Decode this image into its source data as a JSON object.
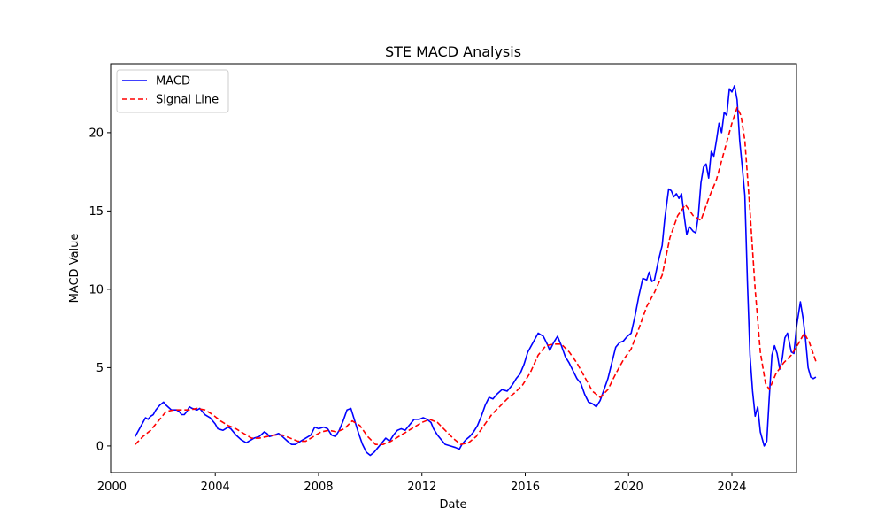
{
  "chart_data": {
    "type": "line",
    "title": "STE MACD Analysis",
    "xlabel": "Date",
    "ylabel": "MACD Value",
    "xlim": [
      1999.95,
      2026.5
    ],
    "ylim": [
      -1.7,
      24.4
    ],
    "x_ticks": [
      2000,
      2004,
      2008,
      2012,
      2016,
      2020,
      2024
    ],
    "y_ticks": [
      0,
      5,
      10,
      15,
      20
    ],
    "grid": false,
    "legend_position": "top-left",
    "series": [
      {
        "name": "MACD",
        "color": "#0000ff",
        "style": "solid",
        "points": [
          [
            2000.9,
            0.6
          ],
          [
            2001.0,
            0.9
          ],
          [
            2001.2,
            1.5
          ],
          [
            2001.3,
            1.8
          ],
          [
            2001.4,
            1.7
          ],
          [
            2001.5,
            1.9
          ],
          [
            2001.6,
            2.0
          ],
          [
            2001.7,
            2.3
          ],
          [
            2001.85,
            2.6
          ],
          [
            2002.0,
            2.8
          ],
          [
            2002.1,
            2.6
          ],
          [
            2002.3,
            2.3
          ],
          [
            2002.5,
            2.3
          ],
          [
            2002.6,
            2.2
          ],
          [
            2002.7,
            2.0
          ],
          [
            2002.8,
            2.0
          ],
          [
            2002.9,
            2.2
          ],
          [
            2003.0,
            2.5
          ],
          [
            2003.1,
            2.4
          ],
          [
            2003.3,
            2.3
          ],
          [
            2003.4,
            2.4
          ],
          [
            2003.5,
            2.2
          ],
          [
            2003.6,
            2.0
          ],
          [
            2003.8,
            1.8
          ],
          [
            2004.0,
            1.4
          ],
          [
            2004.1,
            1.1
          ],
          [
            2004.3,
            1.0
          ],
          [
            2004.5,
            1.2
          ],
          [
            2004.6,
            1.1
          ],
          [
            2004.8,
            0.7
          ],
          [
            2005.0,
            0.4
          ],
          [
            2005.2,
            0.2
          ],
          [
            2005.3,
            0.3
          ],
          [
            2005.5,
            0.5
          ],
          [
            2005.7,
            0.6
          ],
          [
            2005.9,
            0.9
          ],
          [
            2006.0,
            0.8
          ],
          [
            2006.1,
            0.6
          ],
          [
            2006.3,
            0.7
          ],
          [
            2006.45,
            0.8
          ],
          [
            2006.6,
            0.6
          ],
          [
            2006.8,
            0.3
          ],
          [
            2006.95,
            0.1
          ],
          [
            2007.1,
            0.1
          ],
          [
            2007.3,
            0.3
          ],
          [
            2007.5,
            0.5
          ],
          [
            2007.7,
            0.7
          ],
          [
            2007.85,
            1.2
          ],
          [
            2008.0,
            1.1
          ],
          [
            2008.2,
            1.2
          ],
          [
            2008.35,
            1.1
          ],
          [
            2008.5,
            0.7
          ],
          [
            2008.65,
            0.6
          ],
          [
            2008.8,
            1.0
          ],
          [
            2008.95,
            1.6
          ],
          [
            2009.1,
            2.3
          ],
          [
            2009.25,
            2.4
          ],
          [
            2009.4,
            1.6
          ],
          [
            2009.55,
            0.8
          ],
          [
            2009.7,
            0.1
          ],
          [
            2009.85,
            -0.4
          ],
          [
            2010.0,
            -0.6
          ],
          [
            2010.15,
            -0.4
          ],
          [
            2010.3,
            -0.1
          ],
          [
            2010.45,
            0.2
          ],
          [
            2010.6,
            0.5
          ],
          [
            2010.75,
            0.3
          ],
          [
            2010.9,
            0.7
          ],
          [
            2011.05,
            1.0
          ],
          [
            2011.2,
            1.1
          ],
          [
            2011.35,
            1.0
          ],
          [
            2011.5,
            1.3
          ],
          [
            2011.7,
            1.7
          ],
          [
            2011.9,
            1.7
          ],
          [
            2012.05,
            1.8
          ],
          [
            2012.2,
            1.7
          ],
          [
            2012.35,
            1.5
          ],
          [
            2012.45,
            1.1
          ],
          [
            2012.6,
            0.7
          ],
          [
            2012.75,
            0.4
          ],
          [
            2012.9,
            0.1
          ],
          [
            2013.1,
            0.0
          ],
          [
            2013.3,
            -0.1
          ],
          [
            2013.45,
            -0.2
          ],
          [
            2013.55,
            0.1
          ],
          [
            2013.7,
            0.4
          ],
          [
            2013.85,
            0.6
          ],
          [
            2014.0,
            0.9
          ],
          [
            2014.15,
            1.3
          ],
          [
            2014.3,
            1.9
          ],
          [
            2014.45,
            2.6
          ],
          [
            2014.6,
            3.1
          ],
          [
            2014.75,
            3.0
          ],
          [
            2014.9,
            3.3
          ],
          [
            2015.1,
            3.6
          ],
          [
            2015.3,
            3.5
          ],
          [
            2015.5,
            3.9
          ],
          [
            2015.65,
            4.3
          ],
          [
            2015.8,
            4.6
          ],
          [
            2015.95,
            5.2
          ],
          [
            2016.1,
            6.0
          ],
          [
            2016.3,
            6.6
          ],
          [
            2016.5,
            7.2
          ],
          [
            2016.7,
            7.0
          ],
          [
            2016.85,
            6.5
          ],
          [
            2016.95,
            6.1
          ],
          [
            2017.1,
            6.6
          ],
          [
            2017.25,
            7.0
          ],
          [
            2017.4,
            6.4
          ],
          [
            2017.55,
            5.7
          ],
          [
            2017.7,
            5.3
          ],
          [
            2017.85,
            4.8
          ],
          [
            2018.0,
            4.3
          ],
          [
            2018.15,
            4.0
          ],
          [
            2018.3,
            3.3
          ],
          [
            2018.45,
            2.8
          ],
          [
            2018.6,
            2.7
          ],
          [
            2018.75,
            2.5
          ],
          [
            2018.9,
            2.9
          ],
          [
            2019.05,
            3.6
          ],
          [
            2019.2,
            4.3
          ],
          [
            2019.35,
            5.3
          ],
          [
            2019.5,
            6.3
          ],
          [
            2019.65,
            6.6
          ],
          [
            2019.8,
            6.7
          ],
          [
            2019.95,
            7.0
          ],
          [
            2020.1,
            7.2
          ],
          [
            2020.25,
            8.3
          ],
          [
            2020.4,
            9.6
          ],
          [
            2020.55,
            10.7
          ],
          [
            2020.7,
            10.6
          ],
          [
            2020.8,
            11.1
          ],
          [
            2020.9,
            10.5
          ],
          [
            2021.0,
            10.6
          ],
          [
            2021.15,
            11.8
          ],
          [
            2021.3,
            12.8
          ],
          [
            2021.4,
            14.5
          ],
          [
            2021.55,
            16.4
          ],
          [
            2021.65,
            16.3
          ],
          [
            2021.75,
            15.9
          ],
          [
            2021.85,
            16.1
          ],
          [
            2021.95,
            15.8
          ],
          [
            2022.05,
            16.1
          ],
          [
            2022.15,
            14.7
          ],
          [
            2022.25,
            13.5
          ],
          [
            2022.35,
            14.0
          ],
          [
            2022.5,
            13.7
          ],
          [
            2022.6,
            13.6
          ],
          [
            2022.7,
            14.7
          ],
          [
            2022.8,
            16.8
          ],
          [
            2022.9,
            17.8
          ],
          [
            2023.0,
            18.0
          ],
          [
            2023.1,
            17.1
          ],
          [
            2023.2,
            18.8
          ],
          [
            2023.3,
            18.5
          ],
          [
            2023.4,
            19.5
          ],
          [
            2023.5,
            20.6
          ],
          [
            2023.6,
            20.0
          ],
          [
            2023.7,
            21.3
          ],
          [
            2023.8,
            21.1
          ],
          [
            2023.9,
            22.8
          ],
          [
            2024.0,
            22.6
          ],
          [
            2024.1,
            23.0
          ],
          [
            2024.2,
            22.1
          ],
          [
            2024.3,
            19.5
          ],
          [
            2024.4,
            17.8
          ],
          [
            2024.5,
            16.0
          ],
          [
            2024.6,
            10.5
          ],
          [
            2024.7,
            5.8
          ],
          [
            2024.8,
            3.5
          ],
          [
            2024.9,
            1.9
          ],
          [
            2025.0,
            2.5
          ],
          [
            2025.1,
            0.9
          ],
          [
            2025.25,
            0.0
          ],
          [
            2025.35,
            0.3
          ],
          [
            2025.45,
            3.2
          ],
          [
            2025.55,
            5.8
          ],
          [
            2025.65,
            6.4
          ],
          [
            2025.75,
            5.9
          ],
          [
            2025.85,
            4.9
          ],
          [
            2025.95,
            5.6
          ],
          [
            2026.05,
            6.9
          ],
          [
            2026.15,
            7.2
          ],
          [
            2026.3,
            6.0
          ],
          [
            2026.4,
            5.9
          ],
          [
            2026.5,
            7.6
          ],
          [
            2026.65,
            9.2
          ],
          [
            2026.75,
            8.2
          ],
          [
            2026.85,
            6.8
          ],
          [
            2026.95,
            5.0
          ],
          [
            2027.05,
            4.4
          ],
          [
            2027.15,
            4.3
          ],
          [
            2027.25,
            4.4
          ]
        ]
      },
      {
        "name": "Signal Line",
        "color": "#ff0000",
        "style": "dashed",
        "points": [
          [
            2000.9,
            0.1
          ],
          [
            2001.2,
            0.6
          ],
          [
            2001.5,
            1.0
          ],
          [
            2001.8,
            1.6
          ],
          [
            2002.1,
            2.2
          ],
          [
            2002.4,
            2.3
          ],
          [
            2002.7,
            2.3
          ],
          [
            2003.0,
            2.3
          ],
          [
            2003.3,
            2.4
          ],
          [
            2003.6,
            2.3
          ],
          [
            2003.9,
            2.0
          ],
          [
            2004.2,
            1.6
          ],
          [
            2004.5,
            1.3
          ],
          [
            2004.8,
            1.1
          ],
          [
            2005.1,
            0.8
          ],
          [
            2005.4,
            0.5
          ],
          [
            2005.7,
            0.5
          ],
          [
            2006.0,
            0.6
          ],
          [
            2006.3,
            0.7
          ],
          [
            2006.6,
            0.7
          ],
          [
            2006.9,
            0.5
          ],
          [
            2007.2,
            0.3
          ],
          [
            2007.5,
            0.3
          ],
          [
            2007.8,
            0.6
          ],
          [
            2008.1,
            0.9
          ],
          [
            2008.4,
            1.0
          ],
          [
            2008.7,
            0.9
          ],
          [
            2009.0,
            1.1
          ],
          [
            2009.3,
            1.6
          ],
          [
            2009.6,
            1.3
          ],
          [
            2009.9,
            0.6
          ],
          [
            2010.2,
            0.1
          ],
          [
            2010.5,
            0.1
          ],
          [
            2010.8,
            0.3
          ],
          [
            2011.1,
            0.6
          ],
          [
            2011.4,
            0.9
          ],
          [
            2011.7,
            1.2
          ],
          [
            2012.0,
            1.5
          ],
          [
            2012.3,
            1.7
          ],
          [
            2012.6,
            1.5
          ],
          [
            2012.9,
            1.0
          ],
          [
            2013.2,
            0.5
          ],
          [
            2013.5,
            0.1
          ],
          [
            2013.8,
            0.2
          ],
          [
            2014.1,
            0.6
          ],
          [
            2014.4,
            1.3
          ],
          [
            2014.7,
            2.0
          ],
          [
            2015.0,
            2.5
          ],
          [
            2015.3,
            3.0
          ],
          [
            2015.6,
            3.4
          ],
          [
            2015.9,
            3.9
          ],
          [
            2016.2,
            4.7
          ],
          [
            2016.5,
            5.8
          ],
          [
            2016.8,
            6.4
          ],
          [
            2017.1,
            6.5
          ],
          [
            2017.4,
            6.5
          ],
          [
            2017.7,
            6.0
          ],
          [
            2018.0,
            5.3
          ],
          [
            2018.3,
            4.4
          ],
          [
            2018.6,
            3.5
          ],
          [
            2018.9,
            3.1
          ],
          [
            2019.2,
            3.6
          ],
          [
            2019.5,
            4.6
          ],
          [
            2019.8,
            5.5
          ],
          [
            2020.1,
            6.2
          ],
          [
            2020.4,
            7.5
          ],
          [
            2020.7,
            8.9
          ],
          [
            2021.0,
            9.8
          ],
          [
            2021.3,
            10.9
          ],
          [
            2021.6,
            13.3
          ],
          [
            2021.9,
            14.7
          ],
          [
            2022.2,
            15.4
          ],
          [
            2022.5,
            14.7
          ],
          [
            2022.8,
            14.4
          ],
          [
            2023.1,
            15.8
          ],
          [
            2023.4,
            17.0
          ],
          [
            2023.7,
            18.8
          ],
          [
            2024.0,
            20.6
          ],
          [
            2024.2,
            21.6
          ],
          [
            2024.35,
            21.1
          ],
          [
            2024.5,
            19.5
          ],
          [
            2024.7,
            15.0
          ],
          [
            2024.9,
            10.0
          ],
          [
            2025.1,
            6.0
          ],
          [
            2025.3,
            4.0
          ],
          [
            2025.45,
            3.6
          ],
          [
            2025.7,
            4.6
          ],
          [
            2026.0,
            5.3
          ],
          [
            2026.3,
            5.8
          ],
          [
            2026.6,
            6.6
          ],
          [
            2026.8,
            7.2
          ],
          [
            2027.0,
            6.6
          ],
          [
            2027.25,
            5.4
          ]
        ]
      }
    ]
  }
}
